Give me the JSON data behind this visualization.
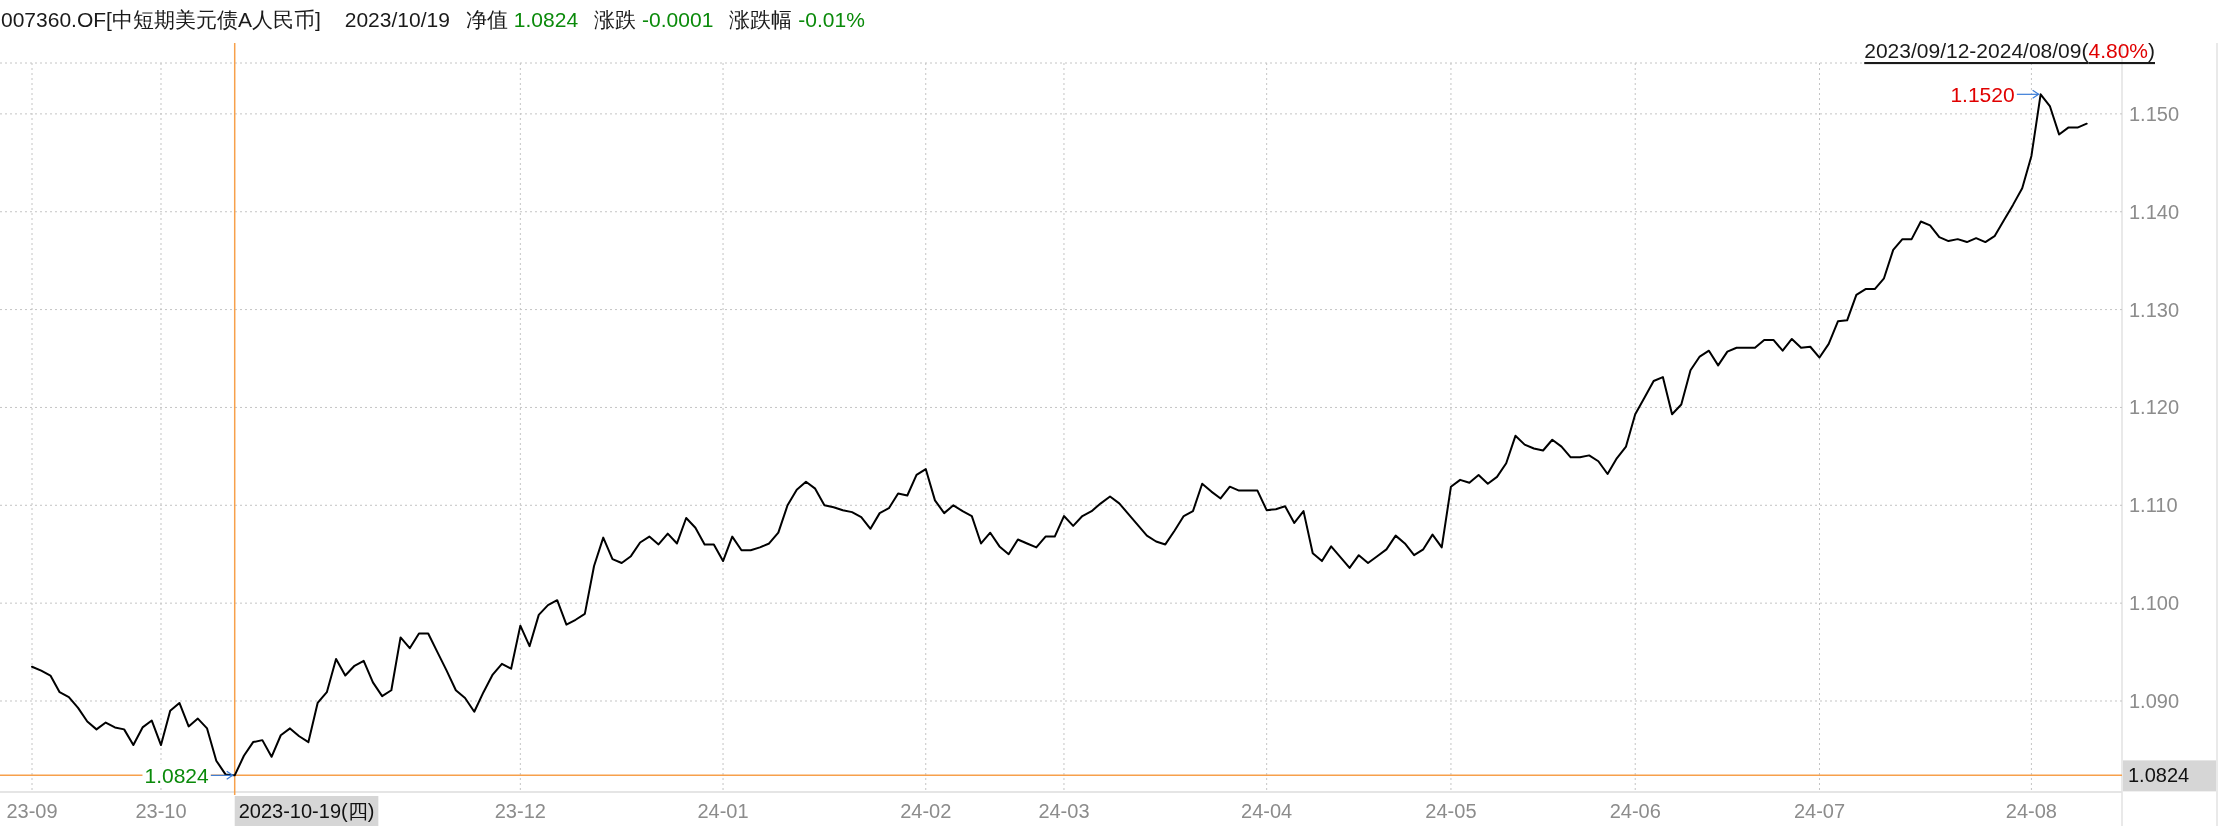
{
  "chart_data": {
    "type": "line",
    "title": "007360.OF[中短期美元债A人民币]",
    "categories": [
      "23-09",
      null,
      null,
      null,
      null,
      null,
      null,
      null,
      null,
      null,
      null,
      null,
      null,
      null,
      "23-10",
      null,
      null,
      null,
      null,
      null,
      null,
      null,
      null,
      null,
      null,
      null,
      null,
      null,
      null,
      null,
      null,
      null,
      null,
      null,
      null,
      null,
      null,
      null,
      null,
      null,
      null,
      null,
      null,
      null,
      null,
      null,
      null,
      null,
      null,
      null,
      null,
      null,
      null,
      "23-12",
      null,
      null,
      null,
      null,
      null,
      null,
      null,
      null,
      null,
      null,
      null,
      null,
      null,
      null,
      null,
      null,
      null,
      null,
      null,
      null,
      null,
      "24-01",
      null,
      null,
      null,
      null,
      null,
      null,
      null,
      null,
      null,
      null,
      null,
      null,
      null,
      null,
      null,
      null,
      null,
      null,
      null,
      null,
      null,
      "24-02",
      null,
      null,
      null,
      null,
      null,
      null,
      null,
      null,
      null,
      null,
      null,
      null,
      null,
      null,
      "24-03",
      null,
      null,
      null,
      null,
      null,
      null,
      null,
      null,
      null,
      null,
      null,
      null,
      null,
      null,
      null,
      null,
      null,
      null,
      null,
      null,
      null,
      "24-04",
      null,
      null,
      null,
      null,
      null,
      null,
      null,
      null,
      null,
      null,
      null,
      null,
      null,
      null,
      null,
      null,
      null,
      null,
      null,
      "24-05",
      null,
      null,
      null,
      null,
      null,
      null,
      null,
      null,
      null,
      null,
      null,
      null,
      null,
      null,
      null,
      null,
      null,
      null,
      null,
      "24-06",
      null,
      null,
      null,
      null,
      null,
      null,
      null,
      null,
      null,
      null,
      null,
      null,
      null,
      null,
      null,
      null,
      null,
      null,
      null,
      "24-07",
      null,
      null,
      null,
      null,
      null,
      null,
      null,
      null,
      null,
      null,
      null,
      null,
      null,
      null,
      null,
      null,
      null,
      null,
      null,
      null,
      null,
      null,
      "24-08",
      null,
      null,
      null,
      null,
      null,
      null
    ],
    "values": [
      1.0935,
      1.0931,
      1.0926,
      1.0909,
      1.0904,
      1.0893,
      1.0879,
      1.0871,
      1.0878,
      1.0873,
      1.0871,
      1.0855,
      1.0873,
      1.088,
      1.0855,
      1.089,
      1.0898,
      1.0874,
      1.0882,
      1.0872,
      1.0839,
      1.0825,
      1.0824,
      1.0844,
      1.0858,
      1.086,
      1.0843,
      1.0865,
      1.0872,
      1.0864,
      1.0858,
      1.0898,
      1.0909,
      1.0943,
      1.0926,
      1.0936,
      1.0941,
      1.0919,
      1.0905,
      1.0911,
      1.0965,
      1.0954,
      1.0969,
      1.0969,
      1.095,
      1.0931,
      1.0911,
      1.0903,
      1.0889,
      1.0909,
      1.0927,
      1.0938,
      1.0933,
      1.0977,
      1.0956,
      1.0988,
      1.0998,
      1.1003,
      1.0978,
      1.0983,
      1.0989,
      1.1038,
      1.1067,
      1.1045,
      1.1041,
      1.1048,
      1.1062,
      1.1068,
      1.106,
      1.1071,
      1.1061,
      1.1087,
      1.1077,
      1.106,
      1.106,
      1.1043,
      1.1068,
      1.1054,
      1.1054,
      1.1057,
      1.1061,
      1.1072,
      1.11,
      1.1116,
      1.1124,
      1.1117,
      1.11,
      1.1098,
      1.1095,
      1.1093,
      1.1088,
      1.1076,
      1.1092,
      1.1097,
      1.1112,
      1.111,
      1.1131,
      1.1137,
      1.1105,
      1.1092,
      1.11,
      1.1094,
      1.1089,
      1.1061,
      1.1072,
      1.1058,
      1.105,
      1.1065,
      1.1061,
      1.1057,
      1.1068,
      1.1068,
      1.1089,
      1.1079,
      1.1089,
      1.1094,
      1.1102,
      1.1109,
      1.1102,
      1.1091,
      1.108,
      1.1069,
      1.1063,
      1.106,
      1.1074,
      1.1089,
      1.1094,
      1.1122,
      1.1114,
      1.1107,
      1.1119,
      1.1115,
      1.1115,
      1.1115,
      1.1095,
      1.1096,
      1.1099,
      1.1082,
      1.1094,
      1.1051,
      1.1043,
      1.1058,
      1.1047,
      1.1036,
      1.1049,
      1.1041,
      1.1048,
      1.1055,
      1.1069,
      1.1061,
      1.1049,
      1.1055,
      1.107,
      1.1057,
      1.1119,
      1.1126,
      1.1123,
      1.1131,
      1.1122,
      1.1129,
      1.1143,
      1.1171,
      1.1162,
      1.1158,
      1.1156,
      1.1167,
      1.116,
      1.1149,
      1.1149,
      1.1151,
      1.1145,
      1.1132,
      1.1148,
      1.116,
      1.1193,
      1.121,
      1.1227,
      1.1231,
      1.1193,
      1.1203,
      1.1238,
      1.1252,
      1.1258,
      1.1243,
      1.1257,
      1.1261,
      1.1261,
      1.1261,
      1.1269,
      1.1269,
      1.1258,
      1.127,
      1.1261,
      1.1262,
      1.1251,
      1.1265,
      1.1288,
      1.1289,
      1.1315,
      1.1321,
      1.1321,
      1.1332,
      1.1361,
      1.1372,
      1.1372,
      1.139,
      1.1386,
      1.1374,
      1.137,
      1.1372,
      1.1369,
      1.1373,
      1.1369,
      1.1375,
      1.1391,
      1.1407,
      1.1424,
      1.1457,
      1.152,
      1.1508,
      1.1479,
      1.1486,
      1.1486,
      1.149
    ],
    "color": "#000000",
    "ylim": [
      1.0807,
      1.1552
    ],
    "yticks": [
      {
        "value": 1.09,
        "label": "1.090"
      },
      {
        "value": 1.1,
        "label": "1.100"
      },
      {
        "value": 1.11,
        "label": "1.110"
      },
      {
        "value": 1.12,
        "label": "1.120"
      },
      {
        "value": 1.13,
        "label": "1.130"
      },
      {
        "value": 1.14,
        "label": "1.140"
      },
      {
        "value": 1.15,
        "label": "1.150"
      }
    ],
    "grid": true,
    "ref_lines": [
      {
        "axis": "y",
        "value": 1.0824,
        "label": "1.0824",
        "color": "#f7a04b"
      }
    ],
    "annotations": [
      "2023/10/19",
      "净值",
      "1.0824",
      "涨跌",
      "-0.0001",
      "涨跌幅",
      "-0.01%",
      "2023/09/12-2024/08/09(",
      "4.80%",
      ")",
      "1.1520",
      "1.0824",
      {
        "text": "2023-10-19(四)",
        "y": 1.0824
      }
    ]
  }
}
